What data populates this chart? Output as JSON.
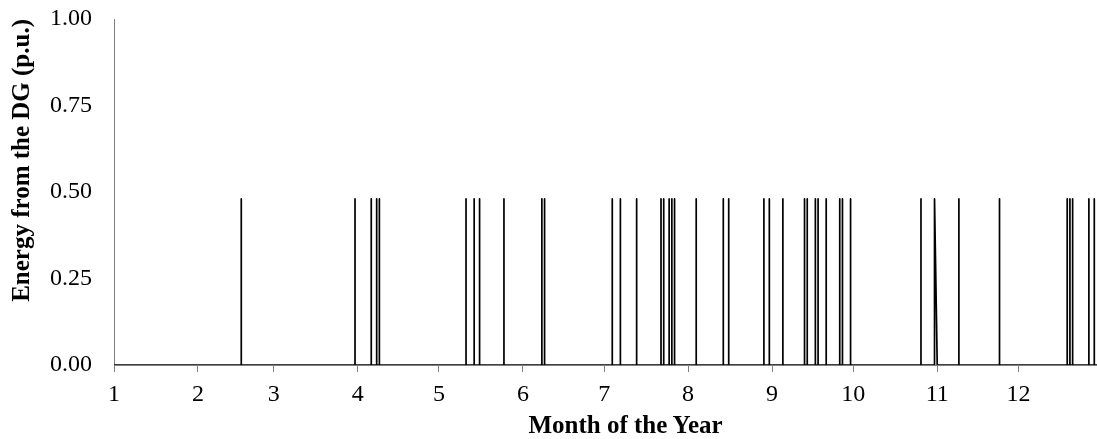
{
  "chart_data": {
    "type": "line",
    "xlabel": "Month of the Year",
    "ylabel": "Energy from the DG (p.u.)",
    "x": [
      "--01-01",
      "--02-17",
      "--02-17",
      "--02-17",
      "--03-31",
      "--03-31",
      "--03-31",
      "--04-06",
      "--04-06",
      "--04-06",
      "--04-08",
      "--04-08",
      "--04-08",
      "--04-09",
      "--04-09",
      "--04-09",
      "--05-11",
      "--05-11",
      "--05-11",
      "--05-14",
      "--05-14",
      "--05-14",
      "--05-16",
      "--05-16",
      "--05-16",
      "--05-25",
      "--05-25",
      "--05-25",
      "--06-08",
      "--06-08",
      "--06-08",
      "--06-09",
      "--06-09",
      "--06-09",
      "--07-04",
      "--07-04",
      "--07-04",
      "--07-07",
      "--07-07",
      "--07-07",
      "--07-13",
      "--07-13",
      "--07-13",
      "--07-22",
      "--07-22",
      "--07-22",
      "--07-23",
      "--07-23",
      "--07-23",
      "--07-25",
      "--07-25",
      "--07-25",
      "--07-26",
      "--07-26",
      "--07-26",
      "--07-27",
      "--07-27",
      "--07-27",
      "--08-04",
      "--08-04",
      "--08-04",
      "--08-14",
      "--08-14",
      "--08-14",
      "--08-16",
      "--08-16",
      "--08-16",
      "--08-29",
      "--08-29",
      "--08-29",
      "--08-31",
      "--08-31",
      "--08-31",
      "--09-05",
      "--09-05",
      "--09-05",
      "--09-13",
      "--09-13",
      "--09-13",
      "--09-14",
      "--09-14",
      "--09-14",
      "--09-17",
      "--09-17",
      "--09-17",
      "--09-18",
      "--09-18",
      "--09-18",
      "--09-21",
      "--09-21",
      "--09-21",
      "--09-26",
      "--09-26",
      "--09-26",
      "--09-27",
      "--09-27",
      "--09-27",
      "--09-30",
      "--09-30",
      "--09-30",
      "--10-26",
      "--10-26",
      "--10-26",
      "--10-31",
      "--10-31",
      "--11-01",
      "--11-09",
      "--11-09",
      "--11-09",
      "--11-24",
      "--11-24",
      "--11-24",
      "--12-19",
      "--12-19",
      "--12-19",
      "--12-20",
      "--12-20",
      "--12-20",
      "--12-21",
      "--12-21",
      "--12-21",
      "--12-27",
      "--12-27",
      "--12-27",
      "--12-29",
      "--12-29",
      "--12-29",
      "--12-30"
    ],
    "values": [
      0,
      0,
      0.48,
      0,
      0,
      0.48,
      0,
      0,
      0.48,
      0,
      0,
      0.48,
      0,
      0,
      0.48,
      0,
      0,
      0.48,
      0,
      0,
      0.48,
      0,
      0,
      0.48,
      0,
      0,
      0.48,
      0,
      0,
      0.48,
      0,
      0,
      0.48,
      0,
      0,
      0.48,
      0,
      0,
      0.48,
      0,
      0,
      0.48,
      0,
      0,
      0.48,
      0,
      0,
      0.48,
      0,
      0,
      0.48,
      0,
      0,
      0.48,
      0,
      0,
      0.48,
      0,
      0,
      0.48,
      0,
      0,
      0.48,
      0,
      0,
      0.48,
      0,
      0,
      0.48,
      0,
      0,
      0.48,
      0,
      0,
      0.48,
      0,
      0,
      0.48,
      0,
      0,
      0.48,
      0,
      0,
      0.48,
      0,
      0,
      0.48,
      0,
      0,
      0.48,
      0,
      0,
      0.48,
      0,
      0,
      0.48,
      0,
      0,
      0.48,
      0,
      0,
      0.48,
      0,
      0,
      0.48,
      0,
      0,
      0.48,
      0,
      0,
      0.48,
      0,
      0,
      0.48,
      0,
      0,
      0.48,
      0,
      0,
      0.48,
      0,
      0,
      0.48,
      0,
      0,
      0.48,
      0,
      0
    ],
    "color": "#000000",
    "marker": "none",
    "line_style": "solid",
    "grid": false,
    "legend": false,
    "xlim": [
      "--01-01",
      "--12-30"
    ],
    "xticks": [
      {
        "value": "--01-01",
        "label": "1"
      },
      {
        "value": "--02-01",
        "label": "2"
      },
      {
        "value": "--03-01",
        "label": "3"
      },
      {
        "value": "--04-01",
        "label": "4"
      },
      {
        "value": "--05-01",
        "label": "5"
      },
      {
        "value": "--06-01",
        "label": "6"
      },
      {
        "value": "--07-01",
        "label": "7"
      },
      {
        "value": "--08-01",
        "label": "8"
      },
      {
        "value": "--09-01",
        "label": "9"
      },
      {
        "value": "--10-01",
        "label": "10"
      },
      {
        "value": "--11-01",
        "label": "11"
      },
      {
        "value": "--12-01",
        "label": "12"
      }
    ],
    "ylim": [
      0,
      1
    ],
    "yticks": [
      {
        "value": 0,
        "label": "0.00"
      },
      {
        "value": 0.25,
        "label": "0.25"
      },
      {
        "value": 0.5,
        "label": "0.50"
      },
      {
        "value": 0.75,
        "label": "0.75"
      },
      {
        "value": 1,
        "label": "1.00"
      }
    ]
  }
}
